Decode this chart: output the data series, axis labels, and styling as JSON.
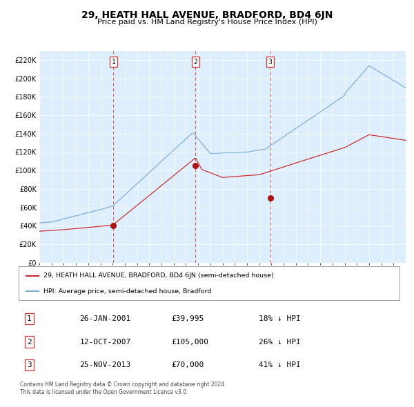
{
  "title": "29, HEATH HALL AVENUE, BRADFORD, BD4 6JN",
  "subtitle": "Price paid vs. HM Land Registry's House Price Index (HPI)",
  "bg_color": "#ddeeff",
  "hpi_color": "#7aadd4",
  "price_color": "#cc2222",
  "marker_color": "#aa1111",
  "vline_color": "#dd4444",
  "ylim": [
    0,
    230000
  ],
  "yticks": [
    0,
    20000,
    40000,
    60000,
    80000,
    100000,
    120000,
    140000,
    160000,
    180000,
    200000,
    220000
  ],
  "sales": [
    {
      "date_num": 2001.07,
      "price": 39995,
      "label": "1"
    },
    {
      "date_num": 2007.78,
      "price": 105000,
      "label": "2"
    },
    {
      "date_num": 2013.9,
      "price": 70000,
      "label": "3"
    }
  ],
  "legend_entries": [
    "29, HEATH HALL AVENUE, BRADFORD, BD4 6JN (semi-detached house)",
    "HPI: Average price, semi-detached house, Bradford"
  ],
  "table_rows": [
    [
      "1",
      "26-JAN-2001",
      "£39,995",
      "18% ↓ HPI"
    ],
    [
      "2",
      "12-OCT-2007",
      "£105,000",
      "26% ↓ HPI"
    ],
    [
      "3",
      "25-NOV-2013",
      "£70,000",
      "41% ↓ HPI"
    ]
  ],
  "footnote": "Contains HM Land Registry data © Crown copyright and database right 2024.\nThis data is licensed under the Open Government Licence v3.0.",
  "xmin": 1995.0,
  "xmax": 2025.0
}
